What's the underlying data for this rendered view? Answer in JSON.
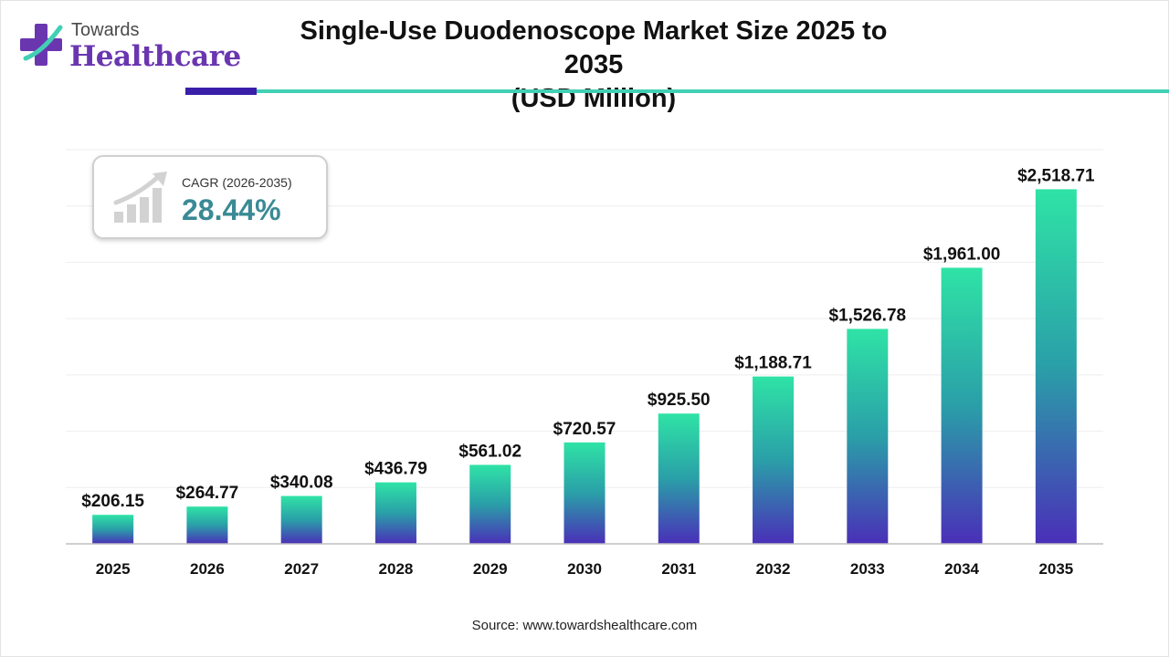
{
  "logo": {
    "line1": "Towards",
    "line2": "Healthcare"
  },
  "title": {
    "line1": "Single-Use Duodenoscope Market Size 2025 to 2035",
    "line2": "(USD Million)"
  },
  "cagr": {
    "label": "CAGR (2026-2035)",
    "value": "28.44%",
    "icon": "growth-chart-icon"
  },
  "source": "Source: www.towardshealthcare.com",
  "colors": {
    "bar_top": "#2fe3a6",
    "bar_bottom": "#4a2fb8",
    "accent_dark": "#3a1fa8",
    "accent_teal": "#42d0b4",
    "brand_purple": "#6a36b0"
  },
  "chart_data": {
    "type": "bar",
    "categories": [
      "2025",
      "2026",
      "2027",
      "2028",
      "2029",
      "2030",
      "2031",
      "2032",
      "2033",
      "2034",
      "2035"
    ],
    "values": [
      206.15,
      264.77,
      340.08,
      436.79,
      561.02,
      720.57,
      925.5,
      1188.71,
      1526.78,
      1961.0,
      2518.71
    ],
    "value_labels": [
      "$206.15",
      "$264.77",
      "$340.08",
      "$436.79",
      "$561.02",
      "$720.57",
      "$925.50",
      "$1,188.71",
      "$1,526.78",
      "$1,961.00",
      "$2,518.71"
    ],
    "ylim": [
      0,
      2800
    ],
    "grid": true,
    "legend": "none"
  }
}
